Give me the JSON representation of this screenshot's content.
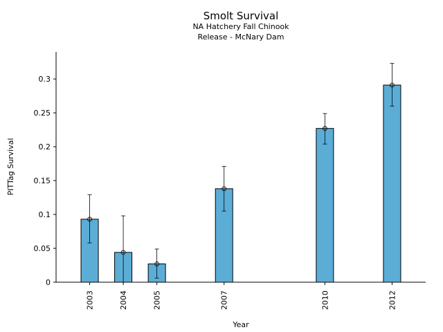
{
  "chart_data": {
    "type": "bar",
    "title": "Smolt Survival",
    "subtitle_lines": [
      "NA Hatchery Fall Chinook",
      "Release - McNary Dam"
    ],
    "xlabel": "Year",
    "ylabel": "PITTag Survival",
    "categories": [
      "2003",
      "2004",
      "2005",
      "2007",
      "2010",
      "2012"
    ],
    "x": [
      2003,
      2004,
      2005,
      2007,
      2010,
      2012
    ],
    "values": [
      0.093,
      0.044,
      0.027,
      0.138,
      0.227,
      0.291
    ],
    "error_low": [
      0.058,
      0.0,
      0.006,
      0.105,
      0.204,
      0.26
    ],
    "error_high": [
      0.129,
      0.098,
      0.049,
      0.171,
      0.249,
      0.323
    ],
    "xlim": [
      2002.0,
      2013.0
    ],
    "ylim": [
      0,
      0.34
    ],
    "yticks": [
      0,
      0.05,
      0.1,
      0.15,
      0.2,
      0.25,
      0.3
    ],
    "ytick_labels": [
      "0",
      "0.05",
      "0.1",
      "0.15",
      "0.2",
      "0.25",
      "0.3"
    ],
    "grid": false,
    "bar_color": "#5badd6"
  }
}
